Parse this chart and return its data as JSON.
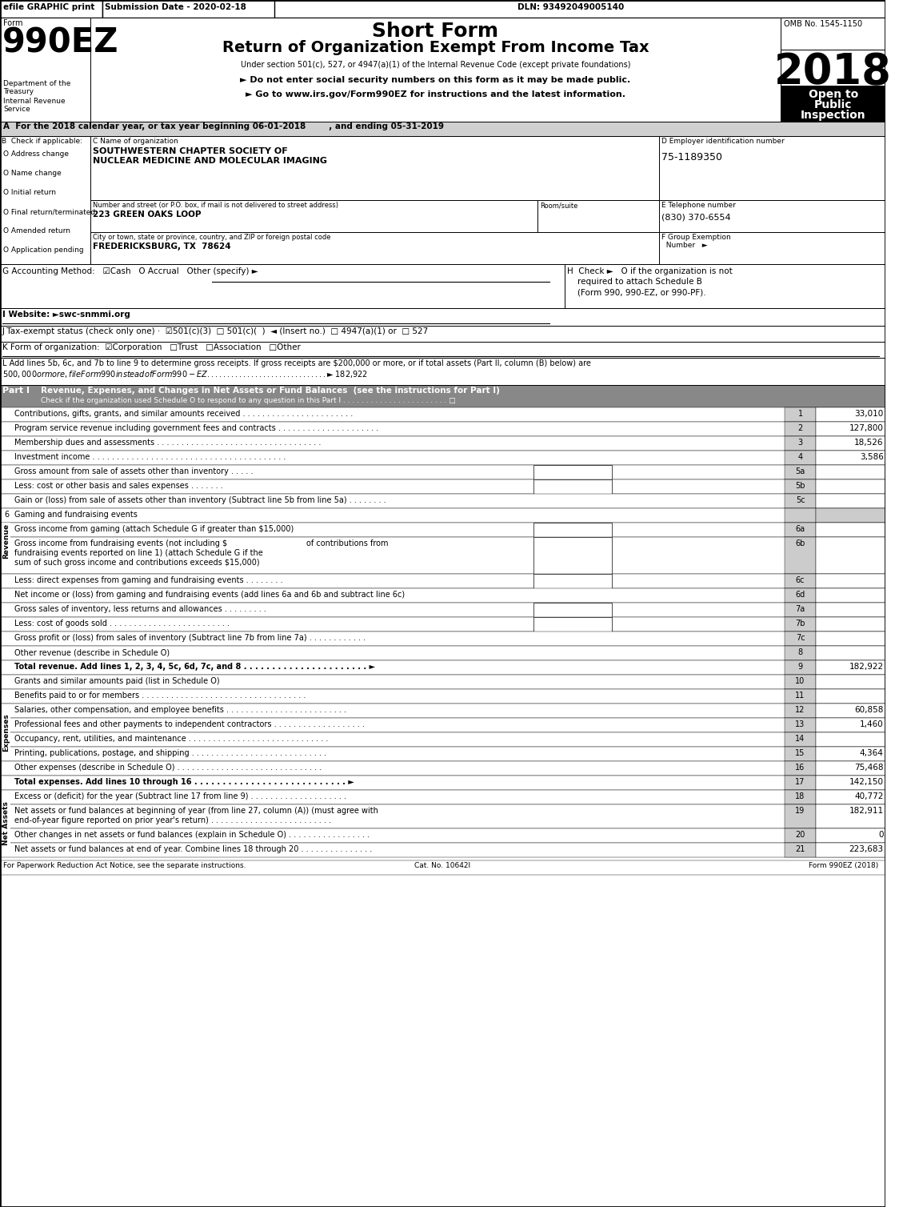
{
  "title_efile": "efile GRAPHIC print",
  "title_submission": "Submission Date - 2020-02-18",
  "title_dln": "DLN: 93492049005140",
  "form_title": "Short Form",
  "form_subtitle": "Return of Organization Exempt From Income Tax",
  "form_year": "2018",
  "omb": "OMB No. 1545-1150",
  "under_section": "Under section 501(c), 527, or 4947(a)(1) of the Internal Revenue Code (except private foundations)",
  "note1": "► Do not enter social security numbers on this form as it may be made public.",
  "note2_pre": "► Go to ",
  "note2_url": "www.irs.gov/Form990EZ",
  "note2_post": " for instructions and the latest information.",
  "open_to_lines": [
    "Open to",
    "Public",
    "Inspection"
  ],
  "form_label": "Form",
  "form_number": "990EZ",
  "dept_lines": [
    "Department of the",
    "Treasury"
  ],
  "internal_revenue_lines": [
    "Internal Revenue",
    "Service"
  ],
  "part_a": "A  For the 2018 calendar year, or tax year beginning 06-01-2018        , and ending 05-31-2019",
  "check_items": [
    "O Address change",
    "O Name change",
    "O Initial return",
    "O Final return/terminated",
    "O Amended return",
    "O Application pending"
  ],
  "part_c_label": "C Name of organization",
  "org_name1": "SOUTHWESTERN CHAPTER SOCIETY OF",
  "org_name2": "NUCLEAR MEDICINE AND MOLECULAR IMAGING",
  "part_d_label": "D Employer identification number",
  "ein": "75-1189350",
  "address_label": "Number and street (or P.O. box, if mail is not delivered to street address)     Room/suite",
  "address": "223 GREEN OAKS LOOP",
  "phone_label": "E Telephone number",
  "phone": "(830) 370-6554",
  "city_label": "City or town, state or province, country, and ZIP or foreign postal code",
  "city": "FREDERICKSBURG, TX  78624",
  "group_exemption_lines": [
    "F Group Exemption",
    "  Number   ►"
  ],
  "acct_method": "G Accounting Method:   ☑Cash   O Accrual   Other (specify) ►",
  "check_h_lines": [
    "H  Check ►   O if the organization is not",
    "    required to attach Schedule B",
    "    (Form 990, 990-EZ, or 990-PF)."
  ],
  "website_label": "I Website: ►swc-snmmi.org",
  "tax_exempt": "J Tax-exempt status (check only one) ·  ☑501(c)(3)  □ 501(c)(  )  ◄ (Insert no.)  □ 4947(a)(1) or  □ 527",
  "form_org": "K Form of organization:  ☑Corporation   □Trust   □Association   □Other",
  "line_l1": "L Add lines 5b, 6c, and 7b to line 9 to determine gross receipts. If gross receipts are $200,000 or more, or if total assets (Part II, column (B) below) are",
  "line_l2": "$500,000 or more, file Form 990 instead of Form 990-EZ . . . . . . . . . . . . . . . . . . . . . . . . . . . . . . ►$ 182,922",
  "part1_header": "Part I",
  "part1_title": "Revenue, Expenses, and Changes in Net Assets or Fund Balances  (see the instructions for Part I)",
  "part1_check": "Check if the organization used Schedule O to respond to any question in this Part I . . . . . . . . . . . . . . . . . . . . . . . □",
  "revenue_rows": [
    {
      "ln": "1",
      "desc": "Contributions, gifts, grants, and similar amounts received . . . . . . . . . . . . . . . . . . . . . . .",
      "val": "33,010"
    },
    {
      "ln": "2",
      "desc": "Program service revenue including government fees and contracts . . . . . . . . . . . . . . . . . . . . .",
      "val": "127,800"
    },
    {
      "ln": "3",
      "desc": "Membership dues and assessments . . . . . . . . . . . . . . . . . . . . . . . . . . . . . . . . . .",
      "val": "18,526"
    },
    {
      "ln": "4",
      "desc": "Investment income . . . . . . . . . . . . . . . . . . . . . . . . . . . . . . . . . . . . . . . .",
      "val": "3,586"
    }
  ],
  "expense_rows": [
    {
      "ln": "10",
      "desc": "Grants and similar amounts paid (list in Schedule O)",
      "val": ""
    },
    {
      "ln": "11",
      "desc": "Benefits paid to or for members . . . . . . . . . . . . . . . . . . . . . . . . . . . . . . . . . .",
      "val": ""
    },
    {
      "ln": "12",
      "desc": "Salaries, other compensation, and employee benefits . . . . . . . . . . . . . . . . . . . . . . . . .",
      "val": "60,858"
    },
    {
      "ln": "13",
      "desc": "Professional fees and other payments to independent contractors . . . . . . . . . . . . . . . . . . .",
      "val": "1,460"
    },
    {
      "ln": "14",
      "desc": "Occupancy, rent, utilities, and maintenance . . . . . . . . . . . . . . . . . . . . . . . . . . . . .",
      "val": ""
    },
    {
      "ln": "15",
      "desc": "Printing, publications, postage, and shipping . . . . . . . . . . . . . . . . . . . . . . . . . . . .",
      "val": "4,364"
    },
    {
      "ln": "16",
      "desc": "Other expenses (describe in Schedule O) . . . . . . . . . . . . . . . . . . . . . . . . . . . . . .",
      "val": "75,468"
    }
  ],
  "footer1": "For Paperwork Reduction Act Notice, see the separate instructions.",
  "footer2": "Cat. No. 10642I",
  "footer3": "Form 990EZ (2018)"
}
